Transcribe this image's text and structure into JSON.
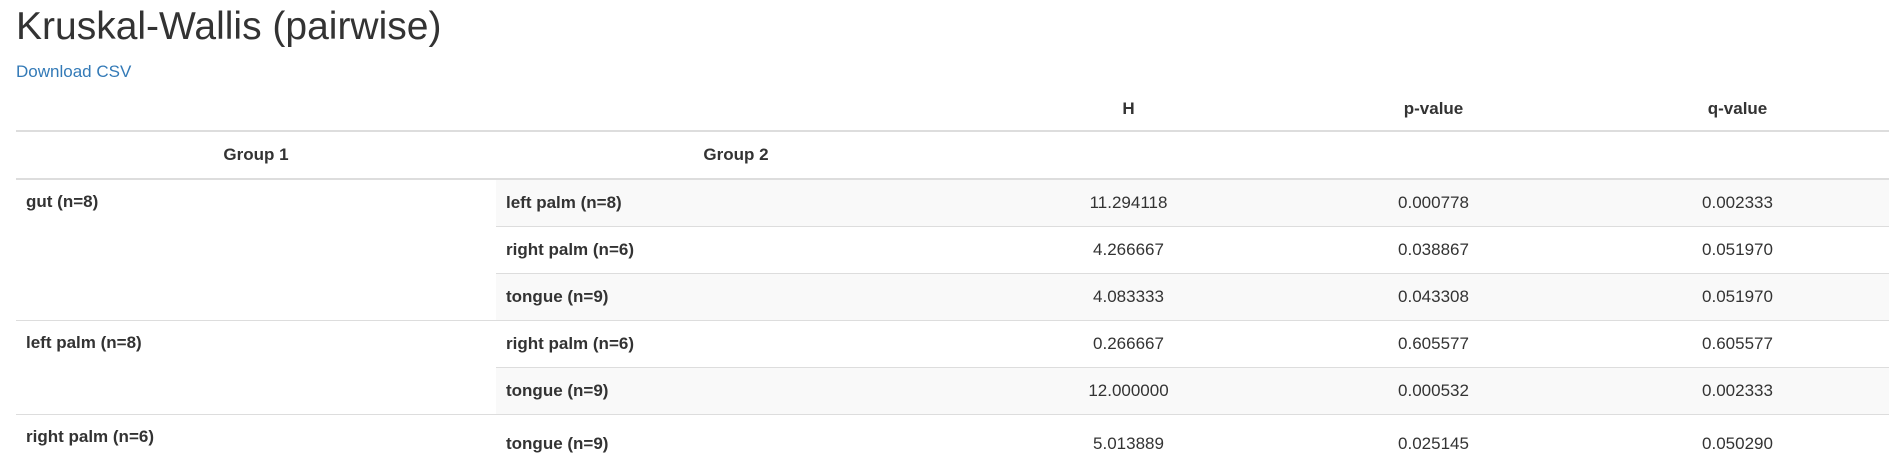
{
  "page": {
    "title": "Kruskal-Wallis (pairwise)",
    "download_label": "Download CSV"
  },
  "table": {
    "stat_headers": {
      "h": "H",
      "p": "p-value",
      "q": "q-value"
    },
    "group_headers": {
      "group1": "Group 1",
      "group2": "Group 2"
    },
    "groups": [
      {
        "group1": "gut (n=8)",
        "rows": [
          {
            "group2": "left palm (n=8)",
            "h": "11.294118",
            "p": "0.000778",
            "q": "0.002333"
          },
          {
            "group2": "right palm (n=6)",
            "h": "4.266667",
            "p": "0.038867",
            "q": "0.051970"
          },
          {
            "group2": "tongue (n=9)",
            "h": "4.083333",
            "p": "0.043308",
            "q": "0.051970"
          }
        ]
      },
      {
        "group1": "left palm (n=8)",
        "rows": [
          {
            "group2": "right palm (n=6)",
            "h": "0.266667",
            "p": "0.605577",
            "q": "0.605577"
          },
          {
            "group2": "tongue (n=9)",
            "h": "12.000000",
            "p": "0.000532",
            "q": "0.002333"
          }
        ]
      },
      {
        "group1": "right palm (n=6)",
        "rows": [
          {
            "group2": "tongue (n=9)",
            "h": "5.013889",
            "p": "0.025145",
            "q": "0.050290"
          }
        ]
      }
    ]
  }
}
